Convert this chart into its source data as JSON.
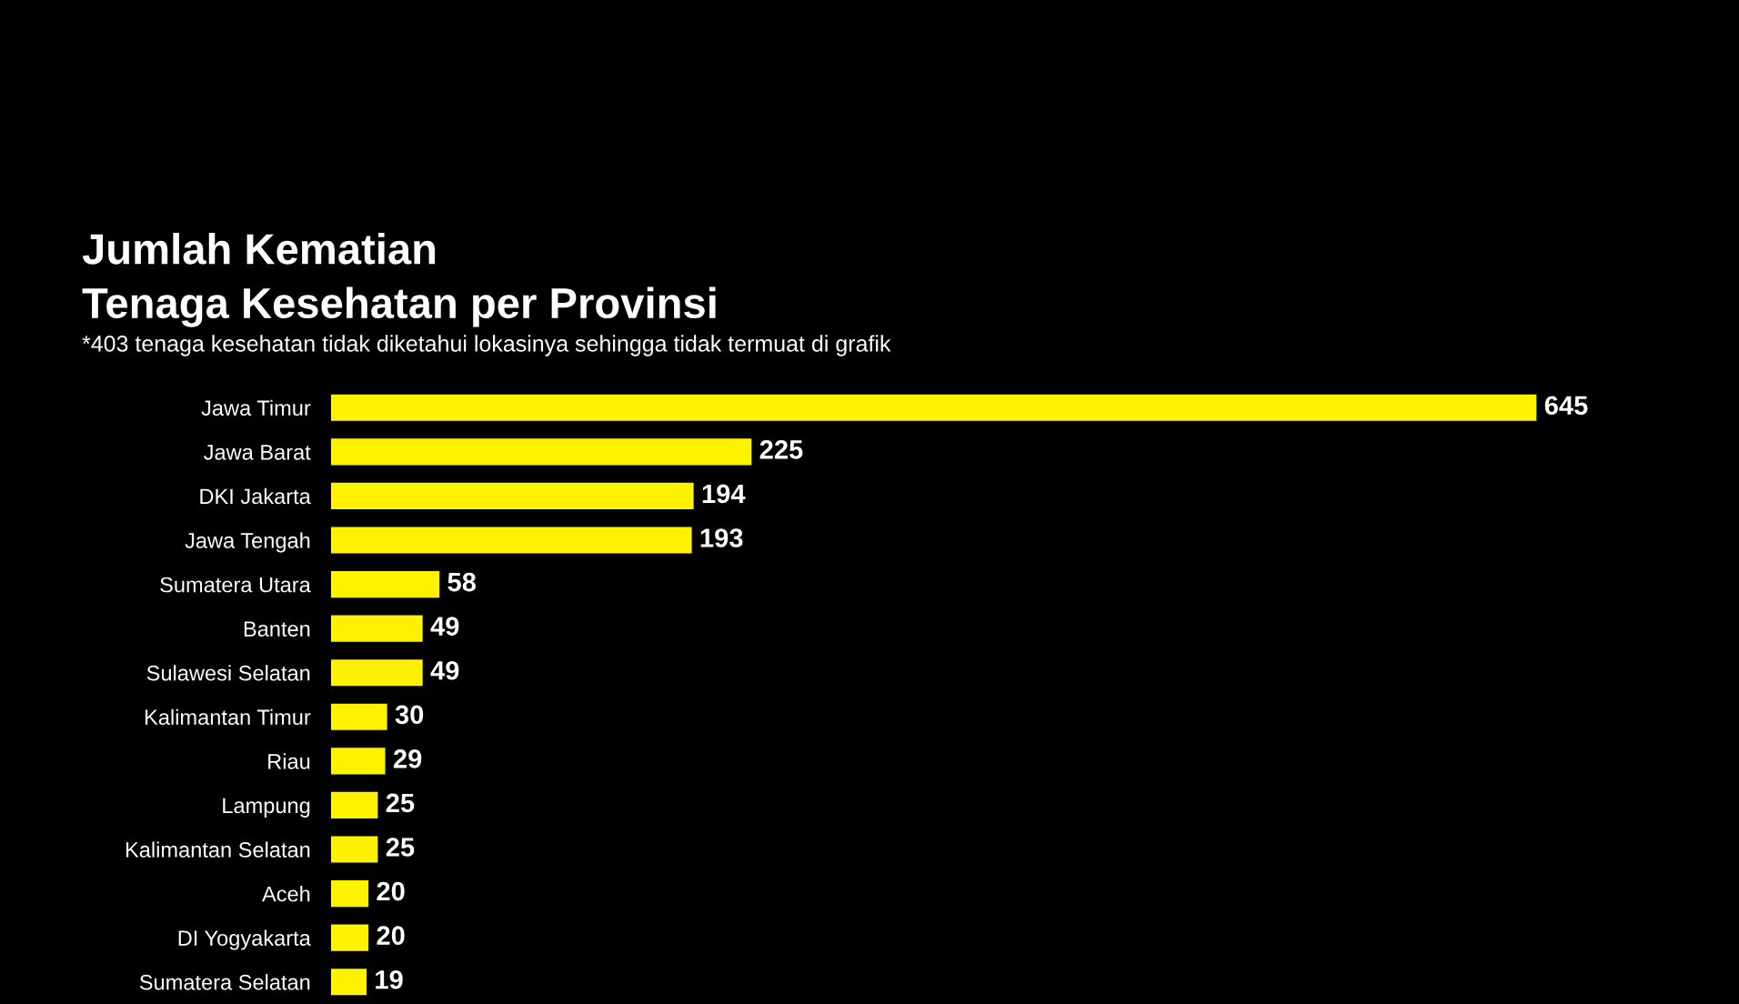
{
  "chart_data": {
    "type": "bar",
    "orientation": "horizontal",
    "title": "Jumlah Kematian\nTenaga Kesehatan per Provinsi",
    "subtitle": "*403 tenaga kesehatan tidak diketahui lokasinya sehingga tidak termuat di grafik",
    "categories": [
      "Jawa Timur",
      "Jawa Barat",
      "DKI Jakarta",
      "Jawa Tengah",
      "Sumatera Utara",
      "Banten",
      "Sulawesi Selatan",
      "Kalimantan Timur",
      "Riau",
      "Lampung",
      "Kalimantan Selatan",
      "Aceh",
      "DI Yogyakarta",
      "Sumatera Selatan"
    ],
    "values": [
      645,
      225,
      194,
      193,
      58,
      49,
      49,
      30,
      29,
      25,
      25,
      20,
      20,
      19
    ],
    "color": "#fff200",
    "data_labels": true,
    "grid": false,
    "legend": false
  }
}
